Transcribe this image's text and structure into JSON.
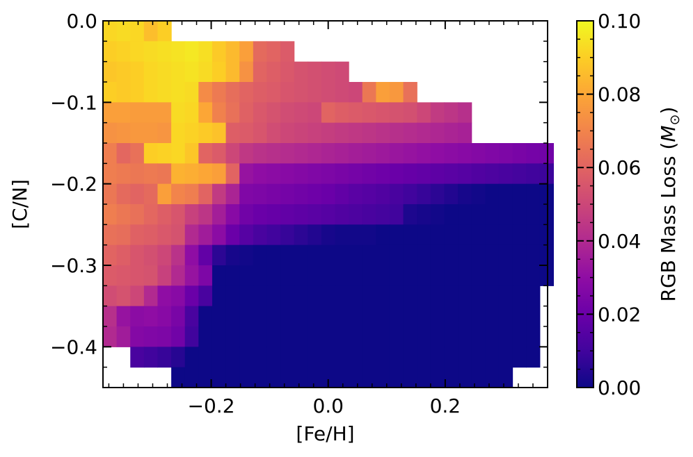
{
  "chart_data": {
    "type": "heatmap",
    "title": "",
    "xlabel": "[Fe/H]",
    "ylabel": "[C/N]",
    "colorbar_label": "RGB Mass Loss (M⊙)",
    "colorbar_label_main": "RGB Mass Loss (",
    "colorbar_label_symbol": "M",
    "colorbar_label_sub": "⊙",
    "colorbar_label_close": ")",
    "colormap": "plasma",
    "xlim": [
      -0.385,
      0.375
    ],
    "ylim": [
      -0.45,
      0.0
    ],
    "vlim": [
      0.0,
      0.1
    ],
    "x_ticks": [
      -0.2,
      0.0,
      0.2
    ],
    "x_tick_labels": [
      "−0.2",
      "0.0",
      "0.2"
    ],
    "y_ticks": [
      0.0,
      -0.1,
      -0.2,
      -0.3,
      -0.4
    ],
    "y_tick_labels": [
      "0.0",
      "−0.1",
      "−0.2",
      "−0.3",
      "−0.4"
    ],
    "colorbar_ticks": [
      0.0,
      0.02,
      0.04,
      0.06,
      0.08,
      0.1
    ],
    "colorbar_tick_labels": [
      "0.00",
      "0.02",
      "0.04",
      "0.06",
      "0.08",
      "0.10"
    ],
    "x_bin_edges": [
      -0.385,
      -0.3617,
      -0.3383,
      -0.315,
      -0.2917,
      -0.2683,
      -0.245,
      -0.2217,
      -0.1983,
      -0.175,
      -0.1517,
      -0.1283,
      -0.105,
      -0.0817,
      -0.0583,
      -0.035,
      -0.0117,
      0.0117,
      0.035,
      0.0583,
      0.0817,
      0.105,
      0.1283,
      0.1517,
      0.175,
      0.1983,
      0.2217,
      0.245,
      0.2683,
      0.2917,
      0.315,
      0.3383,
      0.3617,
      0.385
    ],
    "y_bin_edges": [
      0.0,
      -0.025,
      -0.05,
      -0.075,
      -0.1,
      -0.125,
      -0.15,
      -0.175,
      -0.2,
      -0.225,
      -0.25,
      -0.275,
      -0.3,
      -0.325,
      -0.35,
      -0.375,
      -0.4,
      -0.425,
      -0.45
    ],
    "grid": false,
    "values": [
      [
        0.092,
        0.093,
        0.092,
        0.086,
        0.09,
        null,
        null,
        null,
        null,
        null,
        null,
        null,
        null,
        null,
        null,
        null,
        null,
        null,
        null,
        null,
        null,
        null,
        null,
        null,
        null,
        null,
        null,
        null,
        null,
        null,
        null,
        null,
        null
      ],
      [
        0.09,
        0.091,
        0.092,
        0.093,
        0.094,
        0.095,
        0.096,
        0.094,
        0.089,
        0.085,
        0.078,
        0.062,
        0.06,
        0.057,
        null,
        null,
        null,
        null,
        null,
        null,
        null,
        null,
        null,
        null,
        null,
        null,
        null,
        null,
        null,
        null,
        null,
        null,
        null
      ],
      [
        0.088,
        0.089,
        0.09,
        0.092,
        0.093,
        0.094,
        0.095,
        0.093,
        0.09,
        0.085,
        0.074,
        0.06,
        0.058,
        0.056,
        0.054,
        0.053,
        0.052,
        0.051,
        null,
        null,
        null,
        null,
        null,
        null,
        null,
        null,
        null,
        null,
        null,
        null,
        null,
        null,
        null
      ],
      [
        0.09,
        0.089,
        0.09,
        0.092,
        0.093,
        0.094,
        0.093,
        0.072,
        0.067,
        0.063,
        0.06,
        0.058,
        0.057,
        0.055,
        0.054,
        0.053,
        0.052,
        0.051,
        0.05,
        0.066,
        0.078,
        0.076,
        0.064,
        null,
        null,
        null,
        null,
        null,
        null,
        null,
        null,
        null,
        null
      ],
      [
        0.078,
        0.078,
        0.077,
        0.077,
        0.077,
        0.093,
        0.092,
        0.08,
        0.069,
        0.064,
        0.059,
        0.056,
        0.054,
        0.052,
        0.051,
        0.05,
        0.06,
        0.058,
        0.057,
        0.056,
        0.055,
        0.054,
        0.053,
        0.05,
        0.046,
        0.044,
        0.042,
        null,
        null,
        null,
        null,
        null,
        null
      ],
      [
        0.074,
        0.075,
        0.076,
        0.076,
        0.075,
        0.092,
        0.091,
        0.089,
        0.087,
        0.058,
        0.057,
        0.055,
        0.052,
        0.05,
        0.049,
        0.048,
        0.047,
        0.046,
        0.045,
        0.044,
        0.043,
        0.042,
        0.041,
        0.04,
        0.039,
        0.038,
        0.037,
        null,
        null,
        null,
        null,
        null,
        null
      ],
      [
        0.068,
        0.061,
        0.064,
        0.09,
        0.091,
        0.092,
        0.088,
        0.06,
        0.057,
        0.05,
        0.045,
        0.043,
        0.042,
        0.041,
        0.04,
        0.039,
        0.038,
        0.037,
        0.036,
        0.035,
        0.034,
        0.033,
        0.032,
        0.031,
        0.03,
        0.029,
        0.028,
        0.027,
        0.026,
        0.025,
        0.024,
        0.023,
        0.022
      ],
      [
        0.068,
        0.067,
        0.066,
        0.067,
        0.066,
        0.083,
        0.082,
        0.08,
        0.078,
        0.06,
        0.032,
        0.03,
        0.029,
        0.028,
        0.027,
        0.026,
        0.025,
        0.024,
        0.023,
        0.022,
        0.021,
        0.02,
        0.019,
        0.018,
        0.017,
        0.016,
        0.015,
        0.014,
        0.013,
        0.012,
        0.011,
        0.01,
        0.009
      ],
      [
        0.066,
        0.062,
        0.06,
        0.062,
        0.078,
        0.07,
        0.068,
        0.06,
        0.046,
        0.038,
        0.026,
        0.025,
        0.024,
        0.023,
        0.022,
        0.021,
        0.02,
        0.018,
        0.016,
        0.015,
        0.014,
        0.012,
        0.01,
        0.008,
        0.006,
        0.004,
        0.002,
        0.001,
        0.0,
        0.0,
        0.0,
        0.0,
        0.0
      ],
      [
        0.068,
        0.066,
        0.064,
        0.061,
        0.058,
        0.055,
        0.048,
        0.044,
        0.036,
        0.028,
        0.022,
        0.02,
        0.019,
        0.018,
        0.017,
        0.016,
        0.015,
        0.014,
        0.013,
        0.012,
        0.011,
        0.01,
        0.003,
        0.002,
        0.001,
        0.0,
        0.0,
        0.0,
        0.0,
        0.0,
        0.0,
        0.0,
        0.0
      ],
      [
        0.064,
        0.063,
        0.059,
        0.058,
        0.056,
        0.054,
        0.04,
        0.035,
        0.029,
        0.02,
        0.015,
        0.012,
        0.01,
        0.008,
        0.006,
        0.004,
        0.002,
        0.001,
        0.001,
        0.001,
        0.0,
        0.0,
        0.0,
        0.0,
        0.0,
        0.0,
        0.0,
        0.0,
        0.0,
        0.0,
        0.0,
        0.0,
        0.0
      ],
      [
        0.06,
        0.058,
        0.055,
        0.053,
        0.05,
        0.043,
        0.03,
        0.018,
        0.006,
        0.002,
        0.001,
        0.0,
        0.0,
        0.0,
        0.0,
        0.0,
        0.0,
        0.0,
        0.0,
        0.0,
        0.0,
        0.0,
        0.0,
        0.0,
        0.0,
        0.0,
        0.0,
        0.0,
        0.0,
        0.0,
        0.0,
        0.0,
        0.0
      ],
      [
        0.057,
        0.056,
        0.055,
        0.054,
        0.048,
        0.04,
        0.032,
        0.025,
        0.0,
        0.0,
        0.0,
        0.0,
        0.0,
        0.0,
        0.0,
        0.0,
        0.0,
        0.0,
        0.0,
        0.0,
        0.0,
        0.0,
        0.0,
        0.0,
        0.0,
        0.0,
        0.0,
        0.0,
        0.0,
        0.0,
        0.0,
        0.0,
        0.0
      ],
      [
        0.052,
        0.054,
        0.05,
        0.04,
        0.03,
        0.028,
        0.02,
        0.012,
        0.0,
        0.0,
        0.0,
        0.0,
        0.0,
        0.0,
        0.0,
        0.0,
        0.0,
        0.0,
        0.0,
        0.0,
        0.0,
        0.0,
        0.0,
        0.0,
        0.0,
        0.0,
        0.0,
        0.0,
        0.0,
        0.0,
        0.0,
        0.0,
        null
      ],
      [
        0.042,
        0.032,
        0.029,
        0.03,
        0.028,
        0.024,
        0.012,
        0.0,
        0.0,
        0.0,
        0.0,
        0.0,
        0.0,
        0.0,
        0.0,
        0.0,
        0.0,
        0.0,
        0.0,
        0.0,
        0.0,
        0.0,
        0.0,
        0.0,
        0.0,
        0.0,
        0.0,
        0.0,
        0.0,
        0.0,
        0.0,
        0.0,
        null
      ],
      [
        0.04,
        0.035,
        0.027,
        0.026,
        0.025,
        0.022,
        0.01,
        0.0,
        0.0,
        0.0,
        0.0,
        0.0,
        0.0,
        0.0,
        0.0,
        0.0,
        0.0,
        0.0,
        0.0,
        0.0,
        0.0,
        0.0,
        0.0,
        0.0,
        0.0,
        0.0,
        0.0,
        0.0,
        0.0,
        0.0,
        0.0,
        0.0,
        null
      ],
      [
        null,
        null,
        0.012,
        0.01,
        0.008,
        0.005,
        0.0,
        0.0,
        0.0,
        0.0,
        0.0,
        0.0,
        0.0,
        0.0,
        0.0,
        0.0,
        0.0,
        0.0,
        0.0,
        0.0,
        0.0,
        0.0,
        0.0,
        0.0,
        0.0,
        0.0,
        0.0,
        0.0,
        0.0,
        0.0,
        0.0,
        0.0,
        null
      ],
      [
        null,
        null,
        null,
        null,
        null,
        0.0,
        0.0,
        0.0,
        0.0,
        0.0,
        0.0,
        0.0,
        0.0,
        0.0,
        0.0,
        0.0,
        0.0,
        0.0,
        0.0,
        0.0,
        0.0,
        0.0,
        0.0,
        0.0,
        0.0,
        0.0,
        0.0,
        0.0,
        0.0,
        0.0,
        null,
        null,
        null
      ]
    ]
  }
}
